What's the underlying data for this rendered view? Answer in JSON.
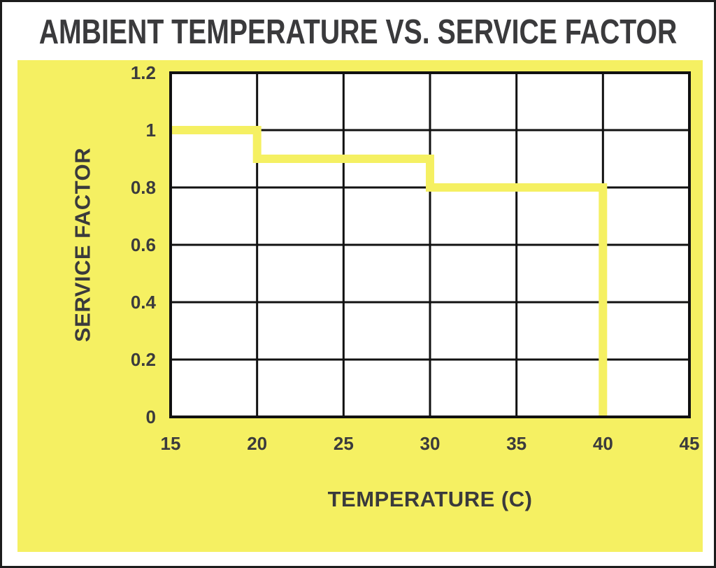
{
  "page": {
    "background": "#ffffff",
    "border_color": "#1c1c1c"
  },
  "colors": {
    "panel_yellow": "#f5f062",
    "line_yellow": "#f5f062",
    "plot_background": "#ffffff",
    "grid_ink": "#111111",
    "title_text": "#3a3a3c",
    "tick_text": "#3b3b3d"
  },
  "chart_data": {
    "type": "line",
    "line_style": "step",
    "title": "AMBIENT TEMPERATURE VS. SERVICE FACTOR",
    "xlabel": "TEMPERATURE (C)",
    "ylabel": "SERVICE FACTOR",
    "xlim": [
      15,
      45
    ],
    "ylim": [
      0,
      1.2
    ],
    "x_ticks": [
      15,
      20,
      25,
      30,
      35,
      40,
      45
    ],
    "y_ticks": [
      0,
      0.2,
      0.4,
      0.6,
      0.8,
      1,
      1.2
    ],
    "grid": "on",
    "legend": "none",
    "line_width": 12,
    "series": [
      {
        "name": "service-factor-step-curve",
        "points": [
          [
            15,
            1
          ],
          [
            20,
            1
          ],
          [
            20,
            0.9
          ],
          [
            30,
            0.9
          ],
          [
            30,
            0.8
          ],
          [
            40,
            0.8
          ],
          [
            40,
            0
          ]
        ]
      }
    ]
  }
}
